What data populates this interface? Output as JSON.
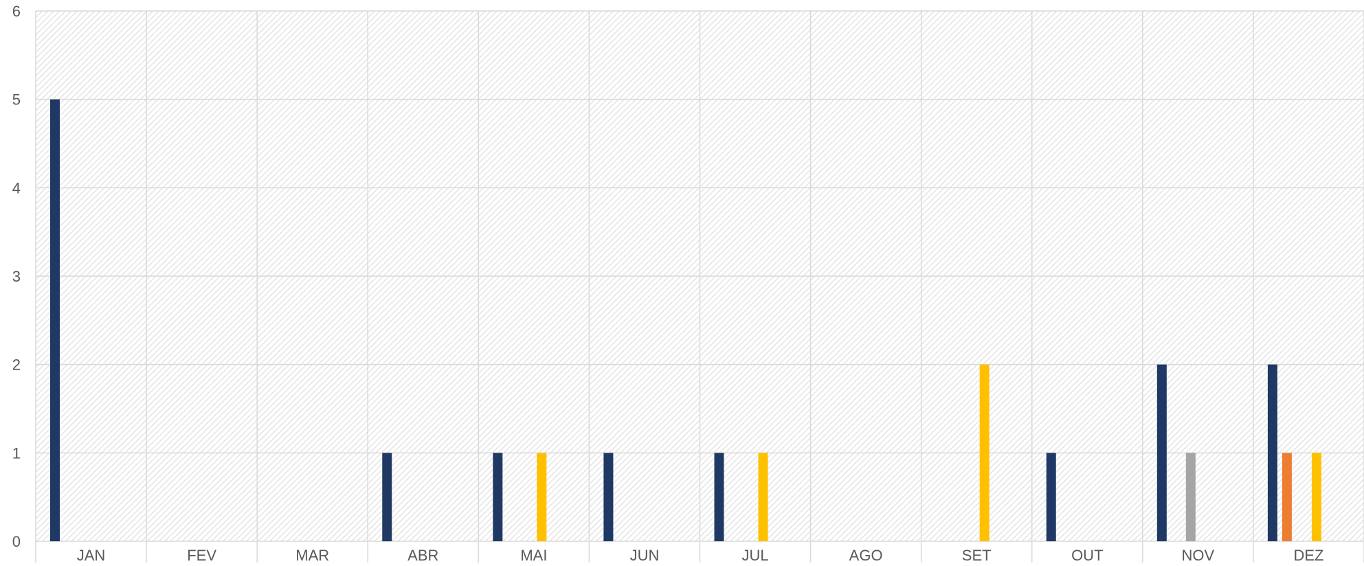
{
  "chart_data": {
    "type": "bar",
    "title": "",
    "xlabel": "",
    "ylabel": "",
    "categories": [
      "JAN",
      "FEV",
      "MAR",
      "ABR",
      "MAI",
      "JUN",
      "JUL",
      "AGO",
      "SET",
      "OUT",
      "NOV",
      "DEZ"
    ],
    "ylim": [
      0,
      6
    ],
    "yticks": [
      "0",
      "1",
      "2",
      "3",
      "4",
      "5",
      "6"
    ],
    "grid": true,
    "legend": "none",
    "series": [
      {
        "color": "#1f3864",
        "values": [
          5,
          0,
          0,
          1,
          1,
          1,
          1,
          0,
          0,
          1,
          2,
          2
        ]
      },
      {
        "color": "#ed7d31",
        "values": [
          0,
          0,
          0,
          0,
          0,
          0,
          0,
          0,
          0,
          0,
          0,
          1
        ]
      },
      {
        "color": "#a5a5a5",
        "values": [
          0,
          0,
          0,
          0,
          0,
          0,
          0,
          0,
          0,
          0,
          1,
          0
        ]
      },
      {
        "color": "#ffc000",
        "values": [
          0,
          0,
          0,
          0,
          1,
          0,
          1,
          0,
          2,
          0,
          0,
          1
        ]
      }
    ],
    "colors": {
      "gridline": "#d9d9d9",
      "background_hatch": "#e4e4e4",
      "tick_label": "#595959"
    }
  }
}
